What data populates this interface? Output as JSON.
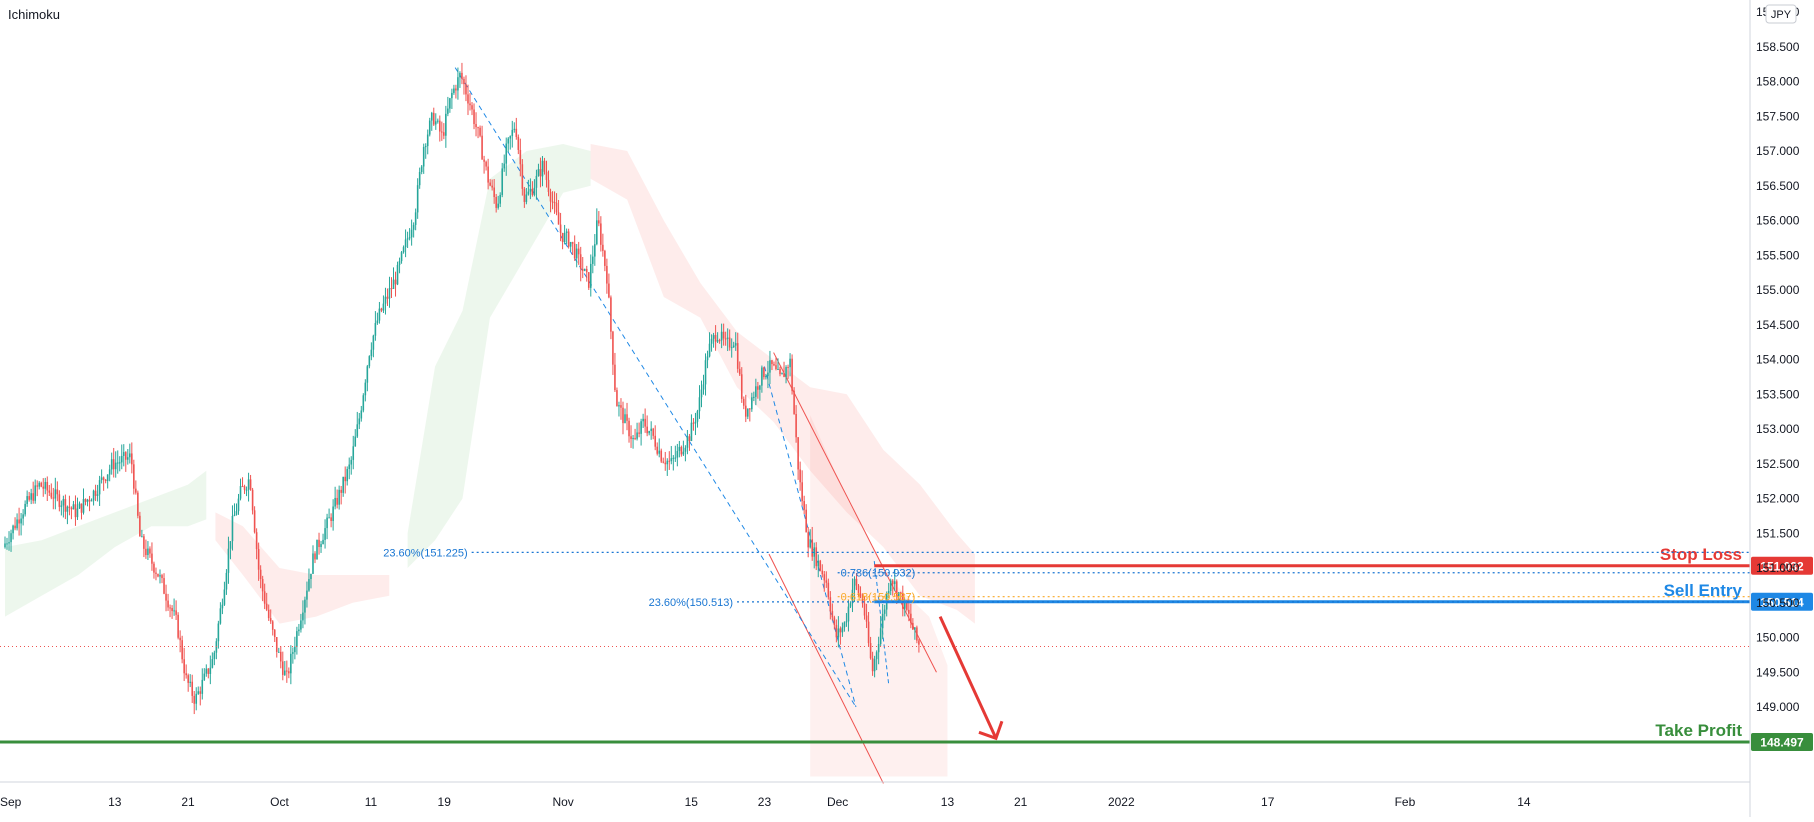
{
  "indicator_label": "Ichimoku",
  "currency_badge": "JPY",
  "chart_data": {
    "type": "candlestick",
    "title": "",
    "xlabel": "",
    "ylabel": "",
    "ylim": [
      148.2,
      159.3
    ],
    "grid": false,
    "y_ticks": [
      "149.000",
      "149.500",
      "150.000",
      "150.500",
      "151.000",
      "151.500",
      "152.000",
      "152.500",
      "153.000",
      "153.500",
      "154.000",
      "154.500",
      "155.000",
      "155.500",
      "156.000",
      "156.500",
      "157.000",
      "157.500",
      "158.000",
      "158.500",
      "159.000"
    ],
    "x_ticks": [
      {
        "label": "Sep",
        "day": 0
      },
      {
        "label": "13",
        "day": 12
      },
      {
        "label": "21",
        "day": 20
      },
      {
        "label": "Oct",
        "day": 30
      },
      {
        "label": "11",
        "day": 40
      },
      {
        "label": "19",
        "day": 48
      },
      {
        "label": "Nov",
        "day": 61
      },
      {
        "label": "15",
        "day": 75
      },
      {
        "label": "23",
        "day": 83
      },
      {
        "label": "Dec",
        "day": 91
      },
      {
        "label": "13",
        "day": 103
      },
      {
        "label": "21",
        "day": 111
      },
      {
        "label": "2022",
        "day": 122
      },
      {
        "label": "17",
        "day": 138
      },
      {
        "label": "Feb",
        "day": 153
      },
      {
        "label": "14",
        "day": 166
      }
    ],
    "price_path": [
      [
        0,
        151.3
      ],
      [
        2,
        151.8
      ],
      [
        4,
        152.2
      ],
      [
        6,
        152.0
      ],
      [
        8,
        151.8
      ],
      [
        10,
        152.1
      ],
      [
        12,
        152.5
      ],
      [
        14,
        152.6
      ],
      [
        15,
        151.4
      ],
      [
        17,
        150.9
      ],
      [
        19,
        150.2
      ],
      [
        20,
        149.4
      ],
      [
        21,
        149.1
      ],
      [
        23,
        149.7
      ],
      [
        24,
        150.6
      ],
      [
        25,
        151.6
      ],
      [
        26,
        152.1
      ],
      [
        27,
        152.3
      ],
      [
        28,
        150.9
      ],
      [
        29,
        150.3
      ],
      [
        30,
        149.8
      ],
      [
        31,
        149.4
      ],
      [
        32,
        150.0
      ],
      [
        33,
        150.6
      ],
      [
        34,
        151.2
      ],
      [
        36,
        151.8
      ],
      [
        38,
        152.5
      ],
      [
        39,
        153.2
      ],
      [
        40,
        154.1
      ],
      [
        41,
        154.6
      ],
      [
        43,
        155.2
      ],
      [
        45,
        156.1
      ],
      [
        46,
        157.1
      ],
      [
        47,
        157.5
      ],
      [
        48,
        157.2
      ],
      [
        49,
        157.8
      ],
      [
        50,
        158.1
      ],
      [
        51,
        157.7
      ],
      [
        52,
        157.2
      ],
      [
        53,
        156.6
      ],
      [
        54,
        156.2
      ],
      [
        55,
        157.0
      ],
      [
        56,
        157.4
      ],
      [
        57,
        156.3
      ],
      [
        58,
        156.5
      ],
      [
        59,
        156.8
      ],
      [
        60,
        156.3
      ],
      [
        61,
        155.8
      ],
      [
        62,
        155.7
      ],
      [
        63,
        155.4
      ],
      [
        64,
        155.1
      ],
      [
        65,
        156.0
      ],
      [
        66,
        155.2
      ],
      [
        67,
        153.4
      ],
      [
        68,
        153.1
      ],
      [
        69,
        152.8
      ],
      [
        70,
        153.1
      ],
      [
        71,
        152.9
      ],
      [
        72,
        152.6
      ],
      [
        73,
        152.5
      ],
      [
        74,
        152.7
      ],
      [
        75,
        152.9
      ],
      [
        76,
        153.3
      ],
      [
        77,
        154.1
      ],
      [
        78,
        154.4
      ],
      [
        79,
        154.2
      ],
      [
        80,
        154.3
      ],
      [
        81,
        153.2
      ],
      [
        82,
        153.5
      ],
      [
        83,
        153.8
      ],
      [
        84,
        153.9
      ],
      [
        85,
        153.7
      ],
      [
        86,
        154.0
      ],
      [
        87,
        152.3
      ],
      [
        88,
        151.4
      ],
      [
        89,
        151.1
      ],
      [
        90,
        150.8
      ],
      [
        91,
        150.0
      ],
      [
        92,
        150.2
      ],
      [
        93,
        150.8
      ],
      [
        94,
        150.5
      ],
      [
        95,
        149.5
      ],
      [
        96,
        150.2
      ],
      [
        97,
        150.9
      ],
      [
        98,
        150.6
      ],
      [
        99,
        150.3
      ],
      [
        100,
        149.9
      ]
    ],
    "horizontal_levels": [
      {
        "name": "Stop Loss",
        "value": 151.032,
        "value_label": "151.032",
        "color": "#e53935"
      },
      {
        "name": "Sell Entry",
        "value": 150.514,
        "value_label": "150.514",
        "color": "#1e88e5"
      },
      {
        "name": "Take Profit",
        "value": 148.497,
        "value_label": "148.497",
        "color": "#388e3c"
      }
    ],
    "fibonacci": [
      {
        "label": "23.60%(151.225)",
        "value": 151.225,
        "color": "#1976d2",
        "start_day": 51
      },
      {
        "label": "23.60%(150.513)",
        "value": 150.513,
        "color": "#1976d2",
        "start_day": 80
      },
      {
        "label": "0.786(150.932)",
        "value": 150.932,
        "color": "#1976d2",
        "start_day": 91
      },
      {
        "label": "0.618(150.587)",
        "value": 150.587,
        "color": "#f9a825",
        "start_day": 91
      }
    ],
    "current_price": 149.87
  }
}
